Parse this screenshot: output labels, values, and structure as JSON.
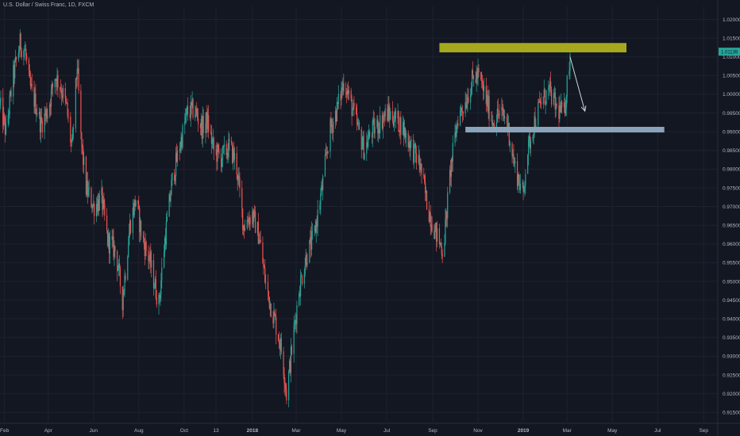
{
  "header": {
    "title": "U.S. Dollar / Swiss Franc, 1D, FXCM"
  },
  "price_tag": "1.01139",
  "colors": {
    "background": "#131722",
    "up": "#26a69a",
    "down": "#ef5350",
    "resistance_zone": "#a6a91e",
    "support_zone": "#8aa3b8",
    "arrow": "#d1d4dc",
    "axis_text": "#b2b5be",
    "grid": "#1e2230",
    "price_tag_bg": "#26a69a"
  },
  "chart_data": {
    "type": "candlestick",
    "title": "U.S. Dollar / Swiss Franc, 1D, FXCM",
    "xlabel": "",
    "ylabel": "",
    "ylim": [
      0.9125,
      1.0235
    ],
    "grid": true,
    "y_ticks": [
      "1.02000",
      "1.01500",
      "1.01000",
      "1.00500",
      "1.00000",
      "0.99500",
      "0.99000",
      "0.98500",
      "0.98000",
      "0.97500",
      "0.97000",
      "0.96500",
      "0.96000",
      "0.95500",
      "0.95000",
      "0.94500",
      "0.94000",
      "0.93500",
      "0.93000",
      "0.92500",
      "0.92000",
      "0.91500"
    ],
    "x_ticks": [
      "Feb",
      "Apr",
      "Jun",
      "Aug",
      "Oct",
      "13",
      "2018",
      "Mar",
      "May",
      "Jul",
      "Sep",
      "Nov",
      "2019",
      "Mar",
      "May",
      "Jul",
      "Sep"
    ],
    "x_range": [
      "2017-01-26",
      "2019-09-20"
    ],
    "x_tick_dates": [
      "2017-02-01",
      "2017-04-01",
      "2017-06-01",
      "2017-08-01",
      "2017-10-01",
      "2017-11-13",
      "2018-01-01",
      "2018-03-01",
      "2018-05-01",
      "2018-07-01",
      "2018-09-01",
      "2018-11-01",
      "2019-01-01",
      "2019-03-01",
      "2019-05-01",
      "2019-07-01",
      "2019-09-01"
    ],
    "close_series": {
      "dates": [
        "2017-01-26",
        "2017-02-03",
        "2017-02-13",
        "2017-02-22",
        "2017-03-01",
        "2017-03-07",
        "2017-03-14",
        "2017-03-22",
        "2017-04-01",
        "2017-04-10",
        "2017-04-18",
        "2017-04-26",
        "2017-05-03",
        "2017-05-10",
        "2017-05-15",
        "2017-05-22",
        "2017-06-01",
        "2017-06-12",
        "2017-06-20",
        "2017-07-01",
        "2017-07-10",
        "2017-07-20",
        "2017-07-28",
        "2017-08-05",
        "2017-08-15",
        "2017-08-28",
        "2017-09-05",
        "2017-09-15",
        "2017-09-25",
        "2017-10-05",
        "2017-10-15",
        "2017-10-25",
        "2017-11-01",
        "2017-11-10",
        "2017-11-20",
        "2017-12-01",
        "2017-12-10",
        "2017-12-20",
        "2018-01-01",
        "2018-01-10",
        "2018-01-20",
        "2018-02-01",
        "2018-02-10",
        "2018-02-16",
        "2018-02-25",
        "2018-03-05",
        "2018-03-15",
        "2018-03-25",
        "2018-04-05",
        "2018-04-15",
        "2018-04-25",
        "2018-05-05",
        "2018-05-10",
        "2018-05-20",
        "2018-06-01",
        "2018-06-10",
        "2018-06-20",
        "2018-07-01",
        "2018-07-10",
        "2018-07-20",
        "2018-08-01",
        "2018-08-15",
        "2018-08-25",
        "2018-09-05",
        "2018-09-15",
        "2018-09-25",
        "2018-10-05",
        "2018-10-15",
        "2018-10-25",
        "2018-11-01",
        "2018-11-10",
        "2018-11-20",
        "2018-12-01",
        "2018-12-10",
        "2018-12-20",
        "2019-01-01",
        "2019-01-05",
        "2019-01-15",
        "2019-01-25",
        "2019-02-05",
        "2019-02-15",
        "2019-02-25",
        "2019-03-05"
      ],
      "close": [
        0.997,
        0.99,
        1.005,
        1.0135,
        1.0115,
        1.002,
        0.998,
        0.992,
        0.996,
        1.005,
        1.002,
        0.996,
        0.985,
        1.008,
        0.988,
        0.975,
        0.97,
        0.972,
        0.961,
        0.958,
        0.945,
        0.965,
        0.972,
        0.962,
        0.956,
        0.944,
        0.961,
        0.977,
        0.986,
        0.995,
        0.996,
        0.991,
        0.993,
        0.985,
        0.983,
        0.986,
        0.982,
        0.965,
        0.968,
        0.962,
        0.948,
        0.939,
        0.931,
        0.92,
        0.935,
        0.948,
        0.957,
        0.962,
        0.975,
        0.99,
        0.996,
        1.004,
        1.0,
        0.993,
        0.985,
        0.99,
        0.992,
        0.995,
        0.994,
        0.992,
        0.987,
        0.981,
        0.97,
        0.963,
        0.958,
        0.98,
        0.994,
        0.998,
        1.004,
        1.005,
        1.0,
        0.993,
        0.995,
        0.993,
        0.981,
        0.973,
        0.983,
        0.992,
        0.998,
        1.001,
        0.996,
        0.995,
        1.011
      ]
    },
    "annotations": [
      {
        "type": "rectangle",
        "name": "resistance-zone",
        "color": "#a6a91e",
        "x": [
          "2018-09-10",
          "2019-05-20"
        ],
        "y": [
          1.0112,
          1.0137
        ]
      },
      {
        "type": "rectangle",
        "name": "support-zone",
        "color": "#8aa3b8",
        "x": [
          "2018-10-15",
          "2019-07-10"
        ],
        "y": [
          0.9898,
          0.9913
        ]
      },
      {
        "type": "arrow",
        "name": "down-arrow",
        "color": "#d1d4dc",
        "from": [
          "2019-03-05",
          1.01
        ],
        "to": [
          "2019-03-25",
          0.9955
        ]
      }
    ]
  }
}
